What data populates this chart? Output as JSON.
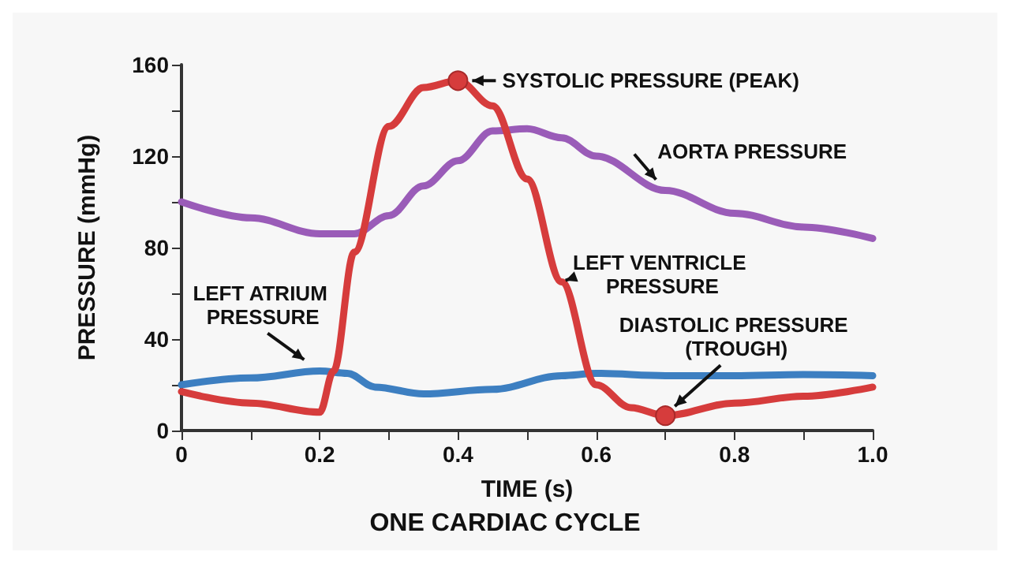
{
  "chart_data": {
    "type": "line",
    "title": "ONE CARDIAC CYCLE",
    "xlabel": "TIME (s)",
    "ylabel": "PRESSURE (mmHg)",
    "x": [
      0,
      0.1,
      0.2,
      0.22,
      0.25,
      0.3,
      0.35,
      0.4,
      0.45,
      0.5,
      0.55,
      0.6,
      0.65,
      0.7,
      0.8,
      0.9,
      1.0
    ],
    "series": [
      {
        "name": "LEFT VENTRICLE PRESSURE",
        "color": "#d63c3c",
        "values": [
          17,
          12,
          8,
          26,
          78,
          133,
          150,
          153,
          142,
          110,
          65,
          20,
          10,
          6.5,
          12,
          15,
          19
        ]
      },
      {
        "name": "AORTA PRESSURE",
        "color": "#9a5cb8",
        "x": [
          0,
          0.1,
          0.2,
          0.25,
          0.3,
          0.35,
          0.4,
          0.45,
          0.5,
          0.55,
          0.6,
          0.7,
          0.8,
          0.9,
          1.0
        ],
        "values": [
          100,
          93,
          86,
          86,
          94,
          107,
          118,
          131,
          132,
          128,
          120,
          105,
          95,
          89,
          84
        ]
      },
      {
        "name": "LEFT ATRIUM PRESSURE",
        "color": "#3d7fc1",
        "x": [
          0,
          0.1,
          0.2,
          0.24,
          0.28,
          0.35,
          0.45,
          0.55,
          0.6,
          0.7,
          0.8,
          0.9,
          1.0
        ],
        "values": [
          20,
          23,
          26,
          25,
          19,
          16,
          18,
          24,
          25,
          24,
          24,
          24.5,
          24
        ]
      }
    ],
    "annotations": [
      {
        "text": "SYSTOLIC PRESSURE (PEAK)",
        "x": 0.4,
        "y": 153
      },
      {
        "text": "DIASTOLIC PRESSURE (TROUGH)",
        "x": 0.7,
        "y": 6.5
      }
    ],
    "xlim": [
      0,
      1
    ],
    "ylim": [
      0,
      160
    ],
    "xticks": [
      0,
      {
        "value": 0.1,
        "label": null
      },
      0.2,
      {
        "value": 0.3,
        "label": null
      },
      0.4,
      {
        "value": 0.5,
        "label": null
      },
      0.6,
      {
        "value": 0.7,
        "label": null
      },
      0.8,
      {
        "value": 0.9,
        "label": null
      },
      {
        "value": 1,
        "label": "1.0"
      }
    ],
    "yticks": [
      0,
      {
        "value": 20,
        "label": null
      },
      40,
      {
        "value": 60,
        "label": null
      },
      80,
      {
        "value": 100,
        "label": null
      },
      120,
      {
        "value": 140,
        "label": null
      },
      160
    ],
    "grid": false,
    "legend": false
  }
}
